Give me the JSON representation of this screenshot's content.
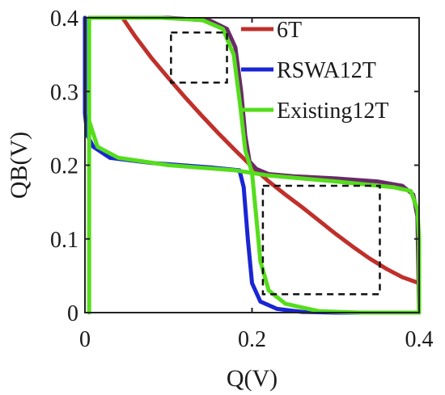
{
  "chart_data": {
    "type": "line",
    "xlabel": "Q(V)",
    "ylabel": "QB(V)",
    "xlim": [
      0,
      0.4
    ],
    "ylim": [
      0,
      0.4
    ],
    "x_ticks": [
      "0",
      "0.2",
      "0.4"
    ],
    "y_ticks": [
      "0",
      "0.1",
      "0.2",
      "0.3",
      "0.4"
    ],
    "grid": false,
    "legend_position": "top-right",
    "series": [
      {
        "name": "6T",
        "color": "#c0302a",
        "points": [
          [
            0.045,
            0.4
          ],
          [
            0.06,
            0.375
          ],
          [
            0.08,
            0.345
          ],
          [
            0.1,
            0.318
          ],
          [
            0.12,
            0.292
          ],
          [
            0.14,
            0.267
          ],
          [
            0.16,
            0.243
          ],
          [
            0.18,
            0.22
          ],
          [
            0.2,
            0.198
          ],
          [
            0.22,
            0.178
          ],
          [
            0.24,
            0.16
          ],
          [
            0.26,
            0.143
          ],
          [
            0.28,
            0.125
          ],
          [
            0.3,
            0.107
          ],
          [
            0.32,
            0.09
          ],
          [
            0.34,
            0.074
          ],
          [
            0.36,
            0.06
          ],
          [
            0.38,
            0.048
          ],
          [
            0.4,
            0.04
          ]
        ]
      },
      {
        "name": "",
        "color": "#6a2a68",
        "points": [
          [
            0.005,
            0.4
          ],
          [
            0.1,
            0.4
          ],
          [
            0.15,
            0.396
          ],
          [
            0.17,
            0.385
          ],
          [
            0.18,
            0.36
          ],
          [
            0.187,
            0.3
          ],
          [
            0.192,
            0.24
          ],
          [
            0.197,
            0.205
          ],
          [
            0.205,
            0.195
          ],
          [
            0.22,
            0.188
          ],
          [
            0.25,
            0.185
          ],
          [
            0.3,
            0.182
          ],
          [
            0.35,
            0.178
          ],
          [
            0.38,
            0.172
          ],
          [
            0.393,
            0.16
          ],
          [
            0.398,
            0.13
          ],
          [
            0.4,
            0.0
          ]
        ]
      },
      {
        "name": "RSWA12T",
        "color": "#1a25d4",
        "points": [
          [
            0.0,
            0.4
          ],
          [
            0.0,
            0.27
          ],
          [
            0.003,
            0.24
          ],
          [
            0.01,
            0.225
          ],
          [
            0.03,
            0.21
          ],
          [
            0.08,
            0.203
          ],
          [
            0.15,
            0.197
          ],
          [
            0.185,
            0.193
          ],
          [
            0.19,
            0.17
          ],
          [
            0.195,
            0.1
          ],
          [
            0.2,
            0.04
          ],
          [
            0.21,
            0.015
          ],
          [
            0.23,
            0.005
          ],
          [
            0.26,
            0.001
          ],
          [
            0.3,
            0.0
          ],
          [
            0.4,
            0.0
          ]
        ]
      },
      {
        "name": "Existing12T",
        "color": "#55dd1c",
        "points": [
          [
            0.005,
            0.0
          ],
          [
            0.005,
            0.4
          ],
          [
            0.09,
            0.4
          ],
          [
            0.14,
            0.397
          ],
          [
            0.165,
            0.385
          ],
          [
            0.178,
            0.35
          ],
          [
            0.186,
            0.28
          ],
          [
            0.192,
            0.22
          ],
          [
            0.2,
            0.19
          ],
          [
            0.205,
            0.13
          ],
          [
            0.21,
            0.07
          ],
          [
            0.22,
            0.03
          ],
          [
            0.24,
            0.012
          ],
          [
            0.28,
            0.002
          ],
          [
            0.33,
            0.0
          ],
          [
            0.4,
            0.0
          ],
          [
            0.4,
            0.1
          ],
          [
            0.398,
            0.14
          ],
          [
            0.39,
            0.165
          ],
          [
            0.37,
            0.17
          ],
          [
            0.3,
            0.178
          ],
          [
            0.22,
            0.186
          ],
          [
            0.18,
            0.193
          ],
          [
            0.1,
            0.2
          ],
          [
            0.04,
            0.21
          ],
          [
            0.015,
            0.225
          ],
          [
            0.005,
            0.26
          ]
        ]
      }
    ],
    "annotations": [
      {
        "type": "dashed-box",
        "xrange": [
          0.103,
          0.17
        ],
        "yrange": [
          0.312,
          0.38
        ]
      },
      {
        "type": "dashed-box",
        "xrange": [
          0.213,
          0.353
        ],
        "yrange": [
          0.025,
          0.172
        ]
      }
    ]
  }
}
